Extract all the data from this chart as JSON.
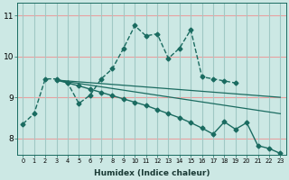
{
  "xlabel": "Humidex (Indice chaleur)",
  "background_color": "#cce8e4",
  "grid_color_h": "#e8a0a0",
  "grid_color_v": "#a0c8c4",
  "line_color": "#1a6b60",
  "x_ticks": [
    0,
    1,
    2,
    3,
    4,
    5,
    6,
    7,
    8,
    9,
    10,
    11,
    12,
    13,
    14,
    15,
    16,
    17,
    18,
    19,
    20,
    21,
    22,
    23
  ],
  "ylim": [
    7.6,
    11.3
  ],
  "y_ticks": [
    8,
    9,
    10,
    11
  ],
  "series": [
    {
      "x": [
        0,
        1,
        2,
        3,
        4,
        5,
        6,
        7,
        8,
        9,
        10,
        11,
        12,
        13,
        14,
        15,
        16,
        17,
        18,
        19
      ],
      "y": [
        8.35,
        8.6,
        9.45,
        9.45,
        9.35,
        8.85,
        9.05,
        9.45,
        9.7,
        10.2,
        10.75,
        10.5,
        10.55,
        9.95,
        10.2,
        10.65,
        9.5,
        9.45,
        9.4,
        9.35
      ],
      "marker": "D",
      "markersize": 2.5,
      "linestyle": "--",
      "linewidth": 1.0
    },
    {
      "x": [
        3,
        23
      ],
      "y": [
        9.42,
        9.0
      ],
      "marker": null,
      "markersize": 0,
      "linestyle": "-",
      "linewidth": 0.9
    },
    {
      "x": [
        3,
        23
      ],
      "y": [
        9.42,
        8.6
      ],
      "marker": null,
      "markersize": 0,
      "linestyle": "-",
      "linewidth": 0.9
    },
    {
      "x": [
        3,
        4,
        5,
        6,
        7,
        8,
        9,
        10,
        11,
        12,
        13,
        14,
        15,
        16,
        17,
        18,
        19,
        20,
        21,
        22,
        23
      ],
      "y": [
        9.42,
        9.35,
        9.28,
        9.2,
        9.12,
        9.04,
        8.96,
        8.88,
        8.8,
        8.7,
        8.6,
        8.5,
        8.38,
        8.25,
        8.1,
        8.4,
        8.22,
        8.38,
        7.82,
        7.75,
        7.63
      ],
      "marker": "D",
      "markersize": 2.5,
      "linestyle": "-",
      "linewidth": 1.0
    }
  ]
}
